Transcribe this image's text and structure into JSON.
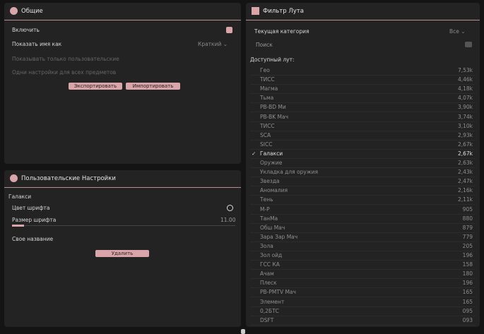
{
  "general": {
    "title": "Общие",
    "enable": "Включить",
    "show_name_as": "Показать имя как",
    "show_name_value": "Краткий",
    "only_custom": "Показывать только пользовательские",
    "same_settings": "Одни настройки для всех предметов",
    "export": "Экспортировать",
    "import": "Импортировать"
  },
  "custom": {
    "title": "Пользовательские Настройки",
    "item": "Галакси",
    "font_color": "Цвет шрифта",
    "font_size": "Размер шрифта",
    "font_size_value": "11.00",
    "custom_name": "Свое название",
    "delete": "Удалить"
  },
  "loot": {
    "title": "Фильтр Лута",
    "category": "Текущая категория",
    "category_value": "Все",
    "search": "Поиск",
    "available": "Доступный лут:",
    "items": [
      {
        "name": "Гео",
        "value": "7,53k"
      },
      {
        "name": "ТИСС",
        "value": "4,46k"
      },
      {
        "name": "Магма",
        "value": "4,18k"
      },
      {
        "name": "Тьма",
        "value": "4,07k"
      },
      {
        "name": "PB-BD Ми",
        "value": "3,90k"
      },
      {
        "name": "PB-BK Мач",
        "value": "3,74k"
      },
      {
        "name": "ТИСС",
        "value": "3,10k"
      },
      {
        "name": "SCA",
        "value": "2,93k"
      },
      {
        "name": "SICC",
        "value": "2,67k"
      },
      {
        "name": "Галакси",
        "value": "2,67k",
        "selected": true
      },
      {
        "name": "Оружие",
        "value": "2,63k"
      },
      {
        "name": "Укладка для оружия",
        "value": "2,43k"
      },
      {
        "name": "Звезда",
        "value": "2,47k"
      },
      {
        "name": "Аномалия",
        "value": "2,16k"
      },
      {
        "name": "Тень",
        "value": "2,11k"
      },
      {
        "name": "M-P",
        "value": "905"
      },
      {
        "name": "ТанМа",
        "value": "880"
      },
      {
        "name": "Обш Мач",
        "value": "879"
      },
      {
        "name": "Зара Зар Мач",
        "value": "779"
      },
      {
        "name": "Зола",
        "value": "205"
      },
      {
        "name": "Зол ойд",
        "value": "196"
      },
      {
        "name": "ГСС КА",
        "value": "158"
      },
      {
        "name": "Ачам",
        "value": "180"
      },
      {
        "name": "Плеск",
        "value": "196"
      },
      {
        "name": "PB-PMTV Мач",
        "value": "165"
      },
      {
        "name": "Элемент",
        "value": "165"
      },
      {
        "name": "0,2БТС",
        "value": "095"
      },
      {
        "name": "DSFT",
        "value": "093"
      }
    ]
  }
}
